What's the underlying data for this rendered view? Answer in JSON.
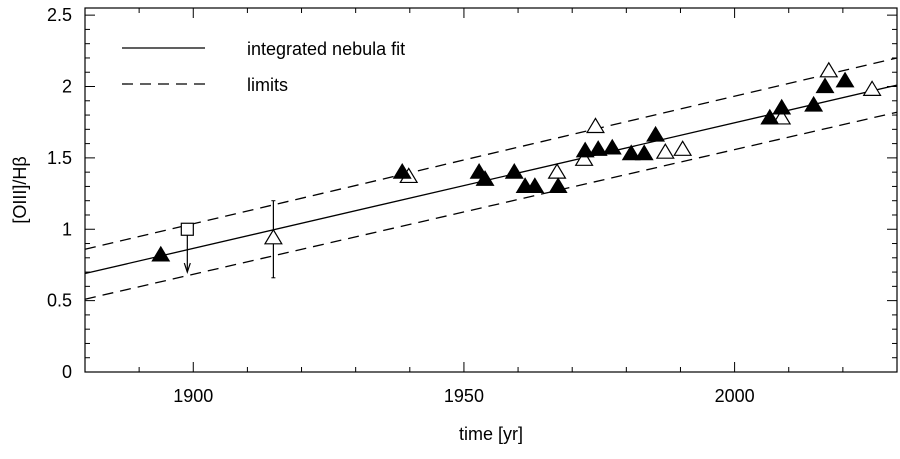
{
  "chart_data": {
    "type": "scatter",
    "xlabel": "time [yr]",
    "ylabel": "[OIII]/Hβ",
    "xlim": [
      1880,
      2030
    ],
    "ylim": [
      0,
      2.55
    ],
    "xticks": [
      1900,
      1950,
      2000
    ],
    "yticks": [
      0,
      0.5,
      1,
      1.5,
      2,
      2.5
    ],
    "xtick_labels": [
      "1900",
      "1950",
      "2000"
    ],
    "ytick_labels": [
      "0",
      "0.5",
      "1",
      "1.5",
      "2",
      "2.5"
    ],
    "grid": false,
    "legend": {
      "placement": "top-left",
      "entries": [
        {
          "label": "integrated nebula fit",
          "style": "solid"
        },
        {
          "label": "limits",
          "style": "dashed"
        }
      ]
    },
    "lines": [
      {
        "style": "solid",
        "x": [
          1880,
          2030
        ],
        "y": [
          0.69,
          2.01
        ]
      },
      {
        "style": "dashed",
        "x": [
          1880,
          2030
        ],
        "y": [
          0.86,
          2.2
        ]
      },
      {
        "style": "dashed",
        "x": [
          1880,
          2030
        ],
        "y": [
          0.51,
          1.82
        ]
      }
    ],
    "filled_triangles": [
      [
        1894,
        0.82
      ],
      [
        1938.6,
        1.4
      ],
      [
        1952.8,
        1.4
      ],
      [
        1953.9,
        1.35
      ],
      [
        1959.3,
        1.4
      ],
      [
        1961.3,
        1.3
      ],
      [
        1963.1,
        1.3
      ],
      [
        1967.4,
        1.3
      ],
      [
        1972.4,
        1.55
      ],
      [
        1974.8,
        1.56
      ],
      [
        1977.4,
        1.57
      ],
      [
        1980.9,
        1.53
      ],
      [
        1983.3,
        1.53
      ],
      [
        1985.4,
        1.66
      ],
      [
        2006.5,
        1.78
      ],
      [
        2008.7,
        1.85
      ],
      [
        2014.6,
        1.87
      ],
      [
        2016.7,
        2.0
      ],
      [
        2020.4,
        2.04
      ]
    ],
    "open_triangles": [
      [
        1914.8,
        0.94
      ],
      [
        1939.8,
        1.37
      ],
      [
        1967.2,
        1.4
      ],
      [
        1972.2,
        1.49
      ],
      [
        1974.3,
        1.72
      ],
      [
        1987.2,
        1.54
      ],
      [
        1990.4,
        1.56
      ],
      [
        2008.7,
        1.78
      ],
      [
        2017.4,
        2.11
      ],
      [
        2025.4,
        1.98
      ]
    ],
    "error_bars": [
      {
        "x": 1914.8,
        "y": 0.94,
        "low": 0.66,
        "high": 1.2
      }
    ],
    "upper_limits": [
      {
        "marker": "open-square",
        "x": 1898.9,
        "y": 1.0,
        "arrow_to": 0.7
      }
    ]
  }
}
